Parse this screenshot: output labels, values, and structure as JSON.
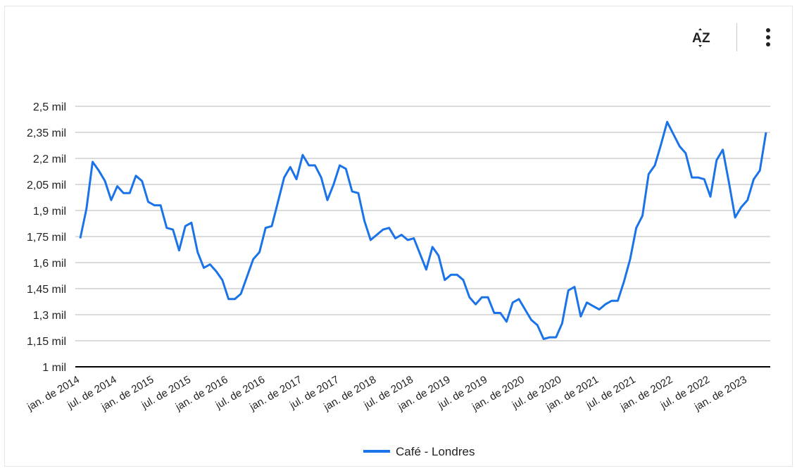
{
  "toolbar": {
    "sort_icon": "sort-az-icon",
    "more_icon": "more-vert-icon"
  },
  "chart_data": {
    "type": "line",
    "title": "",
    "xlabel": "",
    "ylabel": "",
    "ylim": [
      1000,
      2500
    ],
    "y_ticks": [
      1000,
      1150,
      1300,
      1450,
      1600,
      1750,
      1900,
      2050,
      2200,
      2350,
      2500
    ],
    "y_tick_labels": [
      "1 mil",
      "1,15 mil",
      "1,3 mil",
      "1,45 mil",
      "1,6 mil",
      "1,75 mil",
      "1,9 mil",
      "2,05 mil",
      "2,2 mil",
      "2,35 mil",
      "2,5 mil"
    ],
    "x_start": "2014-01",
    "x_ticks": [
      "2014-01",
      "2014-07",
      "2015-01",
      "2015-07",
      "2016-01",
      "2016-07",
      "2017-01",
      "2017-07",
      "2018-01",
      "2018-07",
      "2019-01",
      "2019-07",
      "2020-01",
      "2020-07",
      "2021-01",
      "2021-07",
      "2022-01",
      "2022-07",
      "2023-01"
    ],
    "x_tick_labels": [
      "jan. de 2014",
      "jul. de 2014",
      "jan. de 2015",
      "jul. de 2015",
      "jan. de 2016",
      "jul. de 2016",
      "jan. de 2017",
      "jul. de 2017",
      "jan. de 2018",
      "jul. de 2018",
      "jan. de 2019",
      "jul. de 2019",
      "jan. de 2020",
      "jul. de 2020",
      "jan. de 2021",
      "jul. de 2021",
      "jan. de 2022",
      "jul. de 2022",
      "jan. de 2023"
    ],
    "grid": true,
    "legend": "bottom",
    "series": [
      {
        "name": "Café - Londres",
        "color": "#1a73e8",
        "values": [
          1740,
          1910,
          2180,
          2130,
          2070,
          1960,
          2040,
          2000,
          2000,
          2100,
          2070,
          1950,
          1930,
          1930,
          1800,
          1790,
          1670,
          1810,
          1830,
          1660,
          1570,
          1590,
          1550,
          1500,
          1390,
          1390,
          1420,
          1520,
          1620,
          1660,
          1800,
          1810,
          1950,
          2090,
          2150,
          2080,
          2220,
          2160,
          2160,
          2090,
          1960,
          2050,
          2160,
          2140,
          2010,
          2000,
          1840,
          1730,
          1760,
          1790,
          1800,
          1740,
          1760,
          1730,
          1740,
          1650,
          1560,
          1690,
          1640,
          1500,
          1530,
          1530,
          1500,
          1400,
          1360,
          1400,
          1400,
          1310,
          1310,
          1260,
          1370,
          1390,
          1330,
          1270,
          1240,
          1160,
          1170,
          1170,
          1250,
          1440,
          1460,
          1290,
          1370,
          1350,
          1330,
          1360,
          1380,
          1380,
          1490,
          1620,
          1800,
          1870,
          2110,
          2160,
          2280,
          2410,
          2340,
          2270,
          2230,
          2090,
          2090,
          2080,
          1980,
          2190,
          2250,
          2060,
          1860,
          1920,
          1960,
          2080,
          2130,
          2350
        ]
      }
    ]
  }
}
